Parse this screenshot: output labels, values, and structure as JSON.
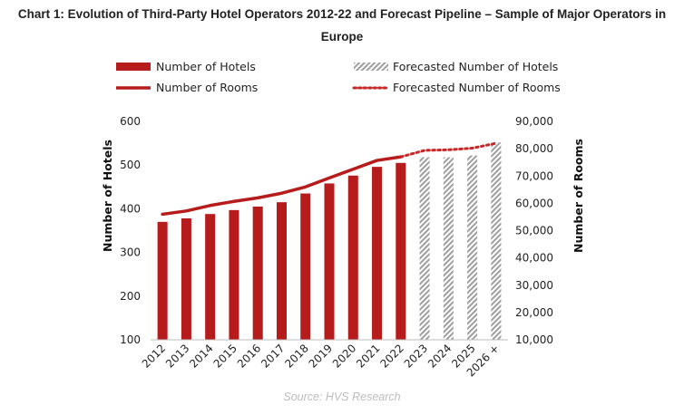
{
  "title_line1": "Chart 1: Evolution of Third-Party Hotel Operators 2012-22 and Forecast Pipeline – Sample of Major Operators in",
  "title_line2": "Europe",
  "source": "Source: HVS Research",
  "colors": {
    "actual": "#b71c1c",
    "forecast_hatch": "#9e9e9e",
    "forecast_line": "#c62828"
  },
  "legend": {
    "hotels": "Number of Hotels",
    "forecast_hotels": "Forecasted Number of Hotels",
    "rooms": "Number of Rooms",
    "forecast_rooms": "Forecasted Number of Rooms"
  },
  "chart_data": {
    "type": "bar",
    "categories": [
      "2012",
      "2013",
      "2014",
      "2015",
      "2016",
      "2017",
      "2018",
      "2019",
      "2020",
      "2021",
      "2022",
      "2023",
      "2024",
      "2025",
      "2026 +"
    ],
    "forecast_from_index": 11,
    "ylabel_left": "Number of Hotels",
    "ylabel_right": "Number of Rooms",
    "ylim_left": [
      100,
      600
    ],
    "yticks_left": [
      "100",
      "200",
      "300",
      "400",
      "500",
      "600"
    ],
    "ylim_right": [
      10000,
      90000
    ],
    "yticks_right": [
      "10,000",
      "20,000",
      "30,000",
      "40,000",
      "50,000",
      "60,000",
      "70,000",
      "80,000",
      "90,000"
    ],
    "grid": false,
    "series": [
      {
        "name": "Number of Hotels",
        "kind": "bar",
        "axis": "left",
        "values": [
          370,
          378,
          388,
          397,
          405,
          415,
          435,
          458,
          476,
          496,
          505,
          518,
          518,
          522,
          552
        ]
      },
      {
        "name": "Number of Rooms",
        "kind": "line",
        "axis": "right",
        "values": [
          56000,
          57200,
          59200,
          60700,
          62000,
          63700,
          66000,
          69300,
          72500,
          75700,
          77000,
          79400,
          79600,
          80200,
          82000
        ]
      }
    ]
  }
}
